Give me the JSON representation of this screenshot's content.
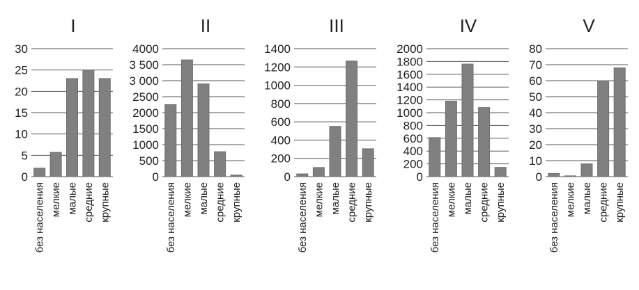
{
  "chart_data": [
    {
      "type": "bar",
      "title": "I",
      "categories": [
        "без населения",
        "мелкие",
        "малые",
        "средние",
        "крупные"
      ],
      "values": [
        2,
        5.7,
        23,
        25,
        23
      ],
      "yticks": [
        0,
        5,
        10,
        15,
        20,
        25,
        30
      ],
      "ylim": [
        0,
        30
      ],
      "grid": true
    },
    {
      "type": "bar",
      "title": "II",
      "categories": [
        "без населения",
        "мелкие",
        "малые",
        "средние",
        "крупные"
      ],
      "values": [
        2250,
        3650,
        2900,
        780,
        50
      ],
      "yticks": [
        0,
        500,
        1000,
        1500,
        2000,
        2500,
        3000,
        3500,
        4000
      ],
      "ytick_labels": [
        "0",
        "500",
        "1000",
        "1500",
        "2000",
        "2500",
        "3 000",
        "3 500",
        "4000"
      ],
      "ylim": [
        0,
        4000
      ],
      "grid": true
    },
    {
      "type": "bar",
      "title": "III",
      "categories": [
        "без населения",
        "мелкие",
        "малые",
        "средние",
        "крупные"
      ],
      "values": [
        30,
        100,
        550,
        1265,
        305
      ],
      "yticks": [
        0,
        200,
        400,
        600,
        800,
        1000,
        1200,
        1400
      ],
      "ylim": [
        0,
        1400
      ],
      "grid": true
    },
    {
      "type": "bar",
      "title": "IV",
      "categories": [
        "без населения",
        "мелкие",
        "малые",
        "средние",
        "крупные"
      ],
      "values": [
        610,
        1180,
        1760,
        1080,
        145
      ],
      "yticks": [
        0,
        200,
        400,
        600,
        800,
        1000,
        1200,
        1400,
        1600,
        1800,
        2000
      ],
      "ylim": [
        0,
        2000
      ],
      "grid": true
    },
    {
      "type": "bar",
      "title": "V",
      "categories": [
        "без населения",
        "мелкие",
        "малые",
        "средние",
        "крупные"
      ],
      "values": [
        2,
        0.5,
        8,
        60,
        68
      ],
      "yticks": [
        0,
        10,
        20,
        30,
        40,
        50,
        60,
        70,
        80
      ],
      "ylim": [
        0,
        80
      ],
      "grid": true
    }
  ]
}
